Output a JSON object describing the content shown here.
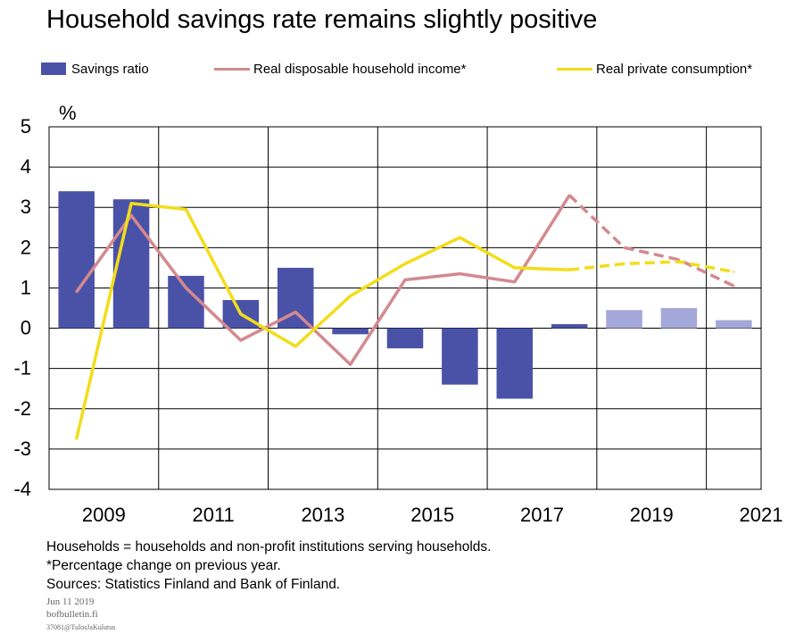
{
  "title": "Household savings rate remains slightly positive",
  "footnotes": {
    "line1": "Households = households and non-profit institutions serving households.",
    "line2": "*Percentage change on previous year.",
    "line3": "Sources: Statistics Finland and Bank of Finland.",
    "date": "Jun 11 2019",
    "site": "bofbulletin.fi",
    "code": "37081@TulosJaKulutus"
  },
  "colors": {
    "savings_actual": "#4a52a8",
    "savings_forecast": "#a4a8d9",
    "income": "#d4898e",
    "consumption": "#f2dd1a"
  },
  "chart_data": {
    "type": "bar+line",
    "title": "Household savings rate remains slightly positive",
    "ylabel": "%",
    "ylim": [
      -4,
      5
    ],
    "yticks": [
      5,
      4,
      3,
      2,
      1,
      0,
      -1,
      -2,
      -3,
      -4
    ],
    "categories": [
      "2009",
      "2010",
      "2011",
      "2012",
      "2013",
      "2014",
      "2015",
      "2016",
      "2017",
      "2018",
      "2019",
      "2020",
      "2021"
    ],
    "xtick_labels": [
      "2009",
      "2011",
      "2013",
      "2015",
      "2017",
      "2019",
      "2021"
    ],
    "forecast_from": "2018",
    "grid": true,
    "legend_position": "top",
    "series": [
      {
        "name": "Savings ratio",
        "type": "bar",
        "values": [
          3.4,
          3.2,
          1.3,
          0.7,
          1.5,
          -0.15,
          -0.5,
          -1.4,
          -1.75,
          0.1,
          0.45,
          0.5,
          0.2
        ]
      },
      {
        "name": "Real disposable household income*",
        "type": "line",
        "values": [
          0.9,
          2.8,
          1.0,
          -0.3,
          0.4,
          -0.9,
          1.2,
          1.35,
          1.15,
          3.3,
          2.0,
          1.7,
          1.05
        ]
      },
      {
        "name": "Real private consumption*",
        "type": "line",
        "values": [
          -2.75,
          3.1,
          2.95,
          0.35,
          -0.45,
          0.8,
          1.6,
          2.25,
          1.5,
          1.45,
          1.6,
          1.65,
          1.4
        ]
      }
    ]
  }
}
